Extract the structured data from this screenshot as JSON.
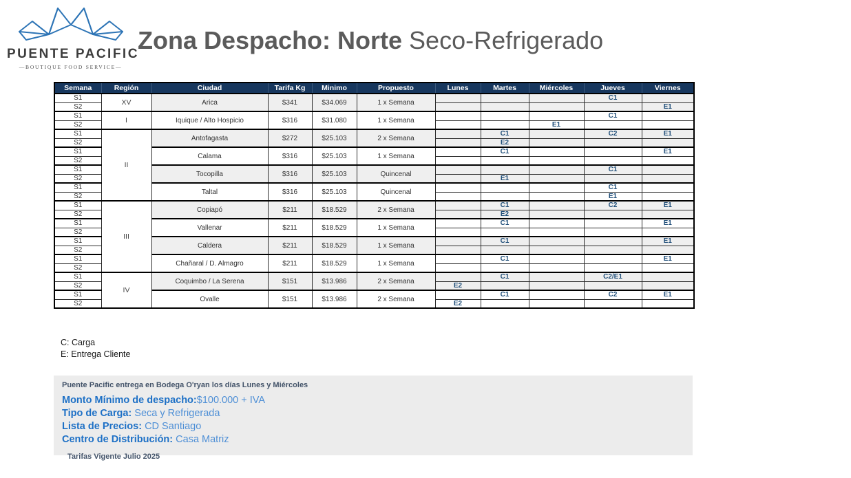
{
  "logo": {
    "brand": "PUENTE PACIFIC",
    "tagline": "—BOUTIQUE FOOD SERVICE—",
    "blue": "#2E75B6"
  },
  "title": {
    "bold": "Zona Despacho: Norte",
    "light": " Seco-Refrigerado"
  },
  "table": {
    "headers": [
      "Semana",
      "Región",
      "Ciudad",
      "Tarifa Kg",
      "Minimo",
      "Propuesto",
      "Lunes",
      "Martes",
      "Miércoles",
      "Jueves",
      "Viernes"
    ],
    "week_labels": [
      "S1",
      "S2"
    ],
    "regions": [
      {
        "name": "XV",
        "cities": [
          {
            "name": "Arica",
            "tarifa": "$341",
            "minimo": "$34.069",
            "propuesto": "1 x Semana",
            "s1": [
              "",
              "",
              "",
              "C1",
              ""
            ],
            "s2": [
              "",
              "",
              "",
              "",
              "E1"
            ]
          }
        ]
      },
      {
        "name": "I",
        "cities": [
          {
            "name": "Iquique / Alto Hospicio",
            "tarifa": "$316",
            "minimo": "$31.080",
            "propuesto": "1 x Semana",
            "s1": [
              "",
              "",
              "",
              "C1",
              ""
            ],
            "s2": [
              "",
              "",
              "E1",
              "",
              ""
            ]
          }
        ]
      },
      {
        "name": "II",
        "cities": [
          {
            "name": "Antofagasta",
            "tarifa": "$272",
            "minimo": "$25.103",
            "propuesto": "2 x Semana",
            "s1": [
              "",
              "C1",
              "",
              "C2",
              "E1"
            ],
            "s2": [
              "",
              "E2",
              "",
              "",
              ""
            ]
          },
          {
            "name": "Calama",
            "tarifa": "$316",
            "minimo": "$25.103",
            "propuesto": "1 x Semana",
            "s1": [
              "",
              "C1",
              "",
              "",
              "E1"
            ],
            "s2": [
              "",
              "",
              "",
              "",
              ""
            ]
          },
          {
            "name": "Tocopilla",
            "tarifa": "$316",
            "minimo": "$25.103",
            "propuesto": "Quincenal",
            "s1": [
              "",
              "",
              "",
              "C1",
              ""
            ],
            "s2": [
              "",
              "E1",
              "",
              "",
              ""
            ]
          },
          {
            "name": "Taltal",
            "tarifa": "$316",
            "minimo": "$25.103",
            "propuesto": "Quincenal",
            "s1": [
              "",
              "",
              "",
              "C1",
              ""
            ],
            "s2": [
              "",
              "",
              "",
              "E1",
              ""
            ]
          }
        ]
      },
      {
        "name": "III",
        "cities": [
          {
            "name": "Copiapó",
            "tarifa": "$211",
            "minimo": "$18.529",
            "propuesto": "2 x Semana",
            "s1": [
              "",
              "C1",
              "",
              "C2",
              "E1"
            ],
            "s2": [
              "",
              "E2",
              "",
              "",
              ""
            ]
          },
          {
            "name": "Vallenar",
            "tarifa": "$211",
            "minimo": "$18.529",
            "propuesto": "1 x Semana",
            "s1": [
              "",
              "C1",
              "",
              "",
              "E1"
            ],
            "s2": [
              "",
              "",
              "",
              "",
              ""
            ]
          },
          {
            "name": "Caldera",
            "tarifa": "$211",
            "minimo": "$18.529",
            "propuesto": "1 x Semana",
            "s1": [
              "",
              "C1",
              "",
              "",
              "E1"
            ],
            "s2": [
              "",
              "",
              "",
              "",
              ""
            ]
          },
          {
            "name": "Chañaral / D. Almagro",
            "tarifa": "$211",
            "minimo": "$18.529",
            "propuesto": "1 x Semana",
            "s1": [
              "",
              "C1",
              "",
              "",
              "E1"
            ],
            "s2": [
              "",
              "",
              "",
              "",
              ""
            ]
          }
        ]
      },
      {
        "name": "IV",
        "cities": [
          {
            "name": "Coquimbo / La Serena",
            "tarifa": "$151",
            "minimo": "$13.986",
            "propuesto": "2 x Semana",
            "s1": [
              "",
              "C1",
              "",
              "C2/E1",
              ""
            ],
            "s2": [
              "E2",
              "",
              "",
              "",
              ""
            ]
          },
          {
            "name": "Ovalle",
            "tarifa": "$151",
            "minimo": "$13.986",
            "propuesto": "2 x Semana",
            "s1": [
              "",
              "C1",
              "",
              "C2",
              "E1"
            ],
            "s2": [
              "E2",
              "",
              "",
              "",
              ""
            ]
          }
        ]
      }
    ]
  },
  "legend": {
    "carga": "C: Carga",
    "entrega": "E: Entrega Cliente"
  },
  "footer": {
    "note": "Puente Pacific entrega en Bodega O'ryan los días Lunes y Miércoles",
    "items": [
      {
        "label": "Monto Mínimo de despacho:",
        "value": "$100.000 + IVA"
      },
      {
        "label": "Tipo de Carga:",
        "value": " Seca y Refrigerada"
      },
      {
        "label": "Lista de Precios:",
        "value": " CD Santiago"
      },
      {
        "label": "Centro de Distribución:",
        "value": " Casa Matriz"
      }
    ],
    "valid": "Tarifas Vigente Julio 2025"
  }
}
